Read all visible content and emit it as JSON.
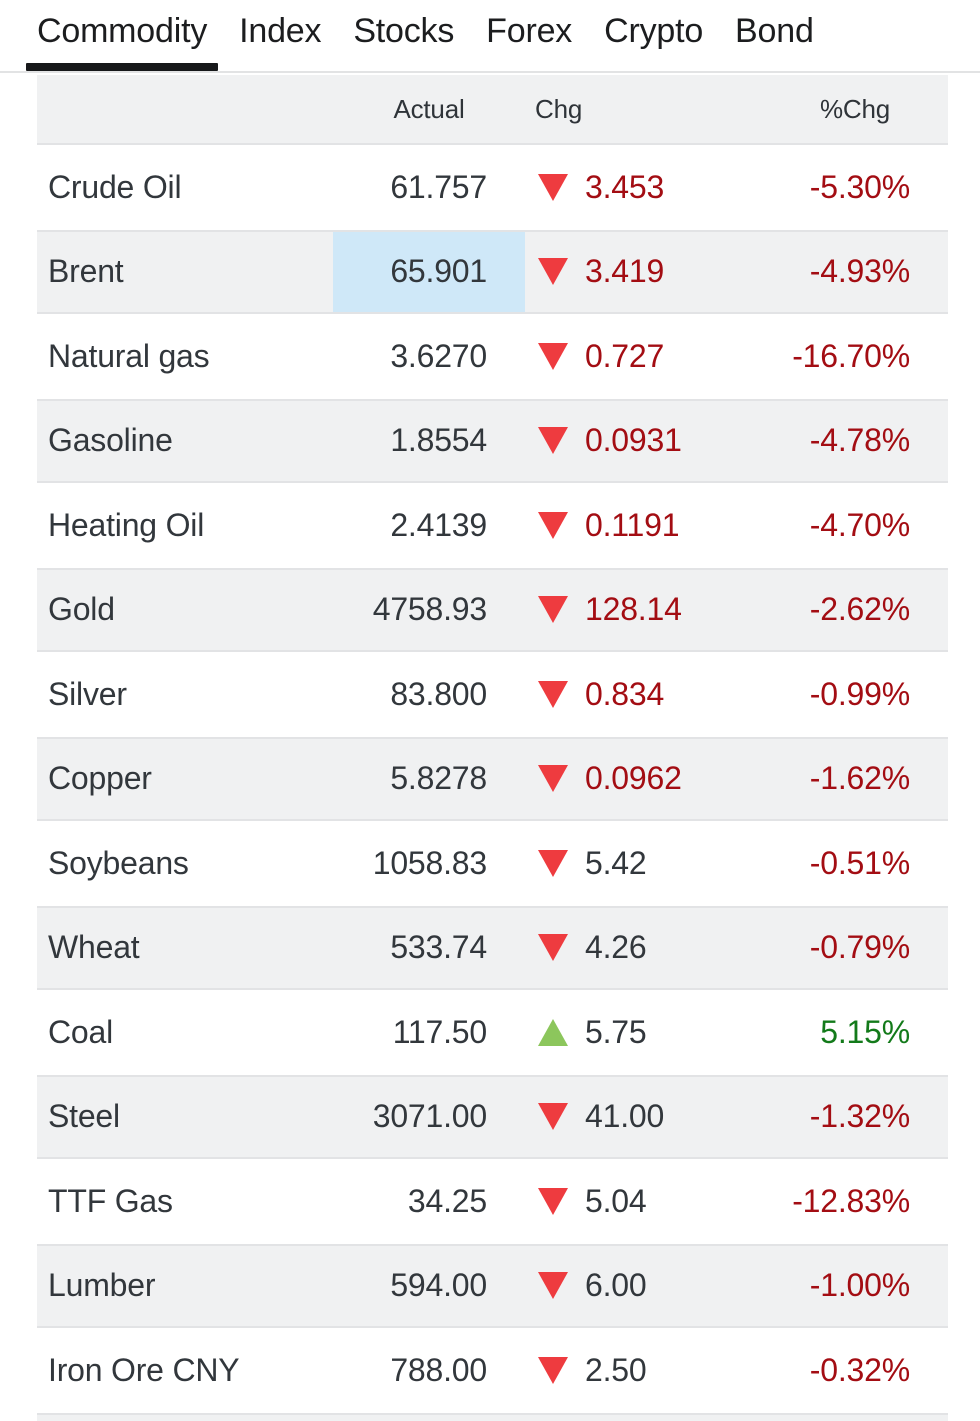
{
  "tabs": [
    {
      "label": "Commodity",
      "active": true
    },
    {
      "label": "Index",
      "active": false
    },
    {
      "label": "Stocks",
      "active": false
    },
    {
      "label": "Forex",
      "active": false
    },
    {
      "label": "Crypto",
      "active": false
    },
    {
      "label": "Bond",
      "active": false
    }
  ],
  "table": {
    "headers": {
      "actual": "Actual",
      "chg": "Chg",
      "pct": "%Chg"
    },
    "rows": [
      {
        "name": "Crude Oil",
        "actual": "61.757",
        "chg": "3.453",
        "pct": "-5.30%",
        "direction": "down",
        "chg_red": true,
        "highlight": false
      },
      {
        "name": "Brent",
        "actual": "65.901",
        "chg": "3.419",
        "pct": "-4.93%",
        "direction": "down",
        "chg_red": true,
        "highlight": true
      },
      {
        "name": "Natural gas",
        "actual": "3.6270",
        "chg": "0.727",
        "pct": "-16.70%",
        "direction": "down",
        "chg_red": true,
        "highlight": false
      },
      {
        "name": "Gasoline",
        "actual": "1.8554",
        "chg": "0.0931",
        "pct": "-4.78%",
        "direction": "down",
        "chg_red": true,
        "highlight": false
      },
      {
        "name": "Heating Oil",
        "actual": "2.4139",
        "chg": "0.1191",
        "pct": "-4.70%",
        "direction": "down",
        "chg_red": true,
        "highlight": false
      },
      {
        "name": "Gold",
        "actual": "4758.93",
        "chg": "128.14",
        "pct": "-2.62%",
        "direction": "down",
        "chg_red": true,
        "highlight": false
      },
      {
        "name": "Silver",
        "actual": "83.800",
        "chg": "0.834",
        "pct": "-0.99%",
        "direction": "down",
        "chg_red": true,
        "highlight": false
      },
      {
        "name": "Copper",
        "actual": "5.8278",
        "chg": "0.0962",
        "pct": "-1.62%",
        "direction": "down",
        "chg_red": true,
        "highlight": false
      },
      {
        "name": "Soybeans",
        "actual": "1058.83",
        "chg": "5.42",
        "pct": "-0.51%",
        "direction": "down",
        "chg_red": false,
        "highlight": false
      },
      {
        "name": "Wheat",
        "actual": "533.74",
        "chg": "4.26",
        "pct": "-0.79%",
        "direction": "down",
        "chg_red": false,
        "highlight": false
      },
      {
        "name": "Coal",
        "actual": "117.50",
        "chg": "5.75",
        "pct": "5.15%",
        "direction": "up",
        "chg_red": false,
        "highlight": false
      },
      {
        "name": "Steel",
        "actual": "3071.00",
        "chg": "41.00",
        "pct": "-1.32%",
        "direction": "down",
        "chg_red": false,
        "highlight": false
      },
      {
        "name": "TTF Gas",
        "actual": "34.25",
        "chg": "5.04",
        "pct": "-12.83%",
        "direction": "down",
        "chg_red": false,
        "highlight": false
      },
      {
        "name": "Lumber",
        "actual": "594.00",
        "chg": "6.00",
        "pct": "-1.00%",
        "direction": "down",
        "chg_red": false,
        "highlight": false
      },
      {
        "name": "Iron Ore CNY",
        "actual": "788.00",
        "chg": "2.50",
        "pct": "-0.32%",
        "direction": "down",
        "chg_red": false,
        "highlight": false
      }
    ]
  },
  "colors": {
    "negative_text": "#a30d13",
    "positive_text": "#137a1a",
    "triangle_down": "#ee3b3f",
    "triangle_up": "#8cc65c",
    "highlight_cell": "#cfe8f8",
    "row_gray": "#f0f1f2",
    "active_tab_underline": "#17181a"
  }
}
